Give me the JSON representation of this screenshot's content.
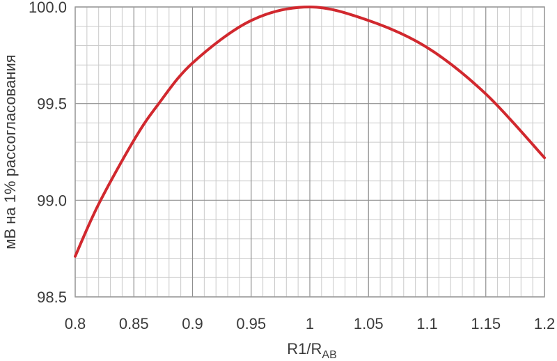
{
  "chart_data": {
    "type": "line",
    "title": "",
    "xlabel": "R1/R",
    "xlabel_sub": "AB",
    "ylabel": "мВ на 1% рассогласования",
    "xlim": [
      0.8,
      1.2
    ],
    "ylim": [
      98.5,
      100.0
    ],
    "x_ticks": [
      "0.8",
      "0.85",
      "0.9",
      "0.95",
      "1",
      "1.05",
      "1.1",
      "1.15",
      "1.2"
    ],
    "y_ticks": [
      "98.5",
      "99.0",
      "99.5",
      "100.0"
    ],
    "grid": true,
    "line_color": "#d1282e",
    "series": [
      {
        "x": [
          0.8,
          0.82,
          0.85,
          0.87,
          0.9,
          0.95,
          1.0,
          1.05,
          1.1,
          1.15,
          1.2
        ],
        "y": [
          98.71,
          98.98,
          99.31,
          99.49,
          99.71,
          99.93,
          100.0,
          99.93,
          99.79,
          99.55,
          99.22
        ]
      }
    ]
  }
}
